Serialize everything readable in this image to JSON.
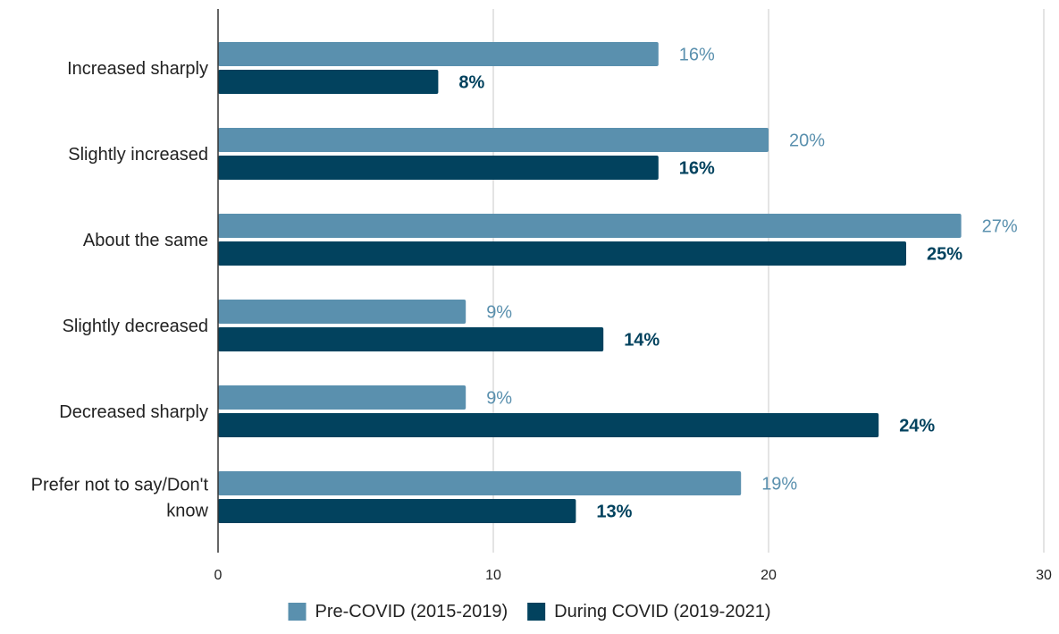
{
  "chart_data": {
    "type": "bar",
    "orientation": "horizontal",
    "title": "",
    "xlabel": "",
    "ylabel": "",
    "xlim": [
      0,
      30
    ],
    "x_ticks": [
      0,
      10,
      20,
      30
    ],
    "grid": "vertical gridlines",
    "legend_position": "bottom",
    "categories": [
      [
        "Increased sharply"
      ],
      [
        "Slightly increased"
      ],
      [
        "About the same"
      ],
      [
        "Slightly decreased"
      ],
      [
        "Decreased sharply"
      ],
      [
        "Prefer not to say/Don't",
        "know"
      ]
    ],
    "series": [
      {
        "name": "Pre-COVID (2015-2019)",
        "color": "#5a90ae",
        "values": [
          16,
          20,
          27,
          9,
          9,
          19
        ],
        "labels": [
          "16%",
          "20%",
          "27%",
          "9%",
          "9%",
          "19%"
        ]
      },
      {
        "name": "During COVID (2019-2021)",
        "color": "#02425e",
        "values": [
          8,
          16,
          25,
          14,
          24,
          13
        ],
        "labels": [
          "8%",
          "16%",
          "25%",
          "14%",
          "24%",
          "13%"
        ]
      }
    ]
  }
}
